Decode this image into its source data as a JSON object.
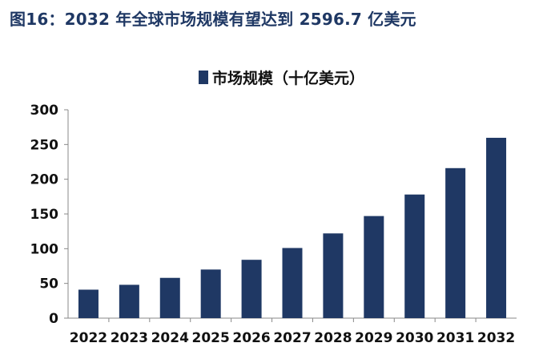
{
  "figure_title": "图16：2032 年全球市场规模有望达到 2596.7 亿美元",
  "colors": {
    "bar": "#1f3864",
    "title": "#1f3864",
    "axis": "#888888"
  },
  "chart_data": {
    "type": "bar",
    "categories": [
      "2022",
      "2023",
      "2024",
      "2025",
      "2026",
      "2027",
      "2028",
      "2029",
      "2030",
      "2031",
      "2032"
    ],
    "series": [
      {
        "name": "市场规模（十亿美元）",
        "values": [
          41,
          48,
          58,
          70,
          84,
          101,
          122,
          147,
          178,
          216,
          259.67
        ]
      }
    ],
    "ylim": [
      0,
      300
    ],
    "yticks": [
      0,
      50,
      100,
      150,
      200,
      250,
      300
    ],
    "legend_position": "top-center",
    "grid": false
  }
}
